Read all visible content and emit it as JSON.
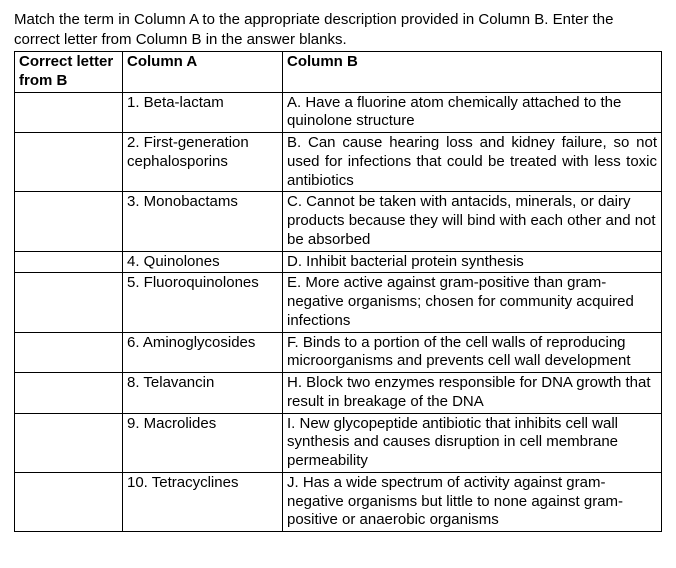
{
  "instructions": "Match the term in Column A to the appropriate description provided in Column B. Enter the correct letter from Column B in the answer blanks.",
  "headers": {
    "answer": "Correct letter from B",
    "colA": "Column A",
    "colB": "Column B"
  },
  "rows": [
    {
      "answer": "",
      "colA": "1. Beta-lactam",
      "colB": "A. Have a fluorine atom chemically attached to the quinolone structure",
      "justify": false
    },
    {
      "answer": "",
      "colA": "2. First-generation cephalosporins",
      "colB": "B. Can cause hearing loss and kidney failure, so not used for infections that could be treated with less toxic antibiotics",
      "justify": true
    },
    {
      "answer": "",
      "colA": "3. Monobactams",
      "colB": "C. Cannot be taken with antacids, minerals, or dairy products because they will bind with each other and not be absorbed",
      "justify": false
    },
    {
      "answer": "",
      "colA": "4. Quinolones",
      "colB": "D. Inhibit bacterial protein synthesis",
      "justify": false
    },
    {
      "answer": "",
      "colA": "5. Fluoroquinolones",
      "colB": "E. More active against gram-positive than gram-negative organisms; chosen for community acquired infections",
      "justify": false
    },
    {
      "answer": "",
      "colA": "6. Aminoglycosides",
      "colB": "F. Binds to a portion of the cell walls of reproducing microorganisms and prevents cell wall development",
      "justify": false
    },
    {
      "answer": "",
      "colA": "8. Telavancin",
      "colB": "H. Block two enzymes responsible for DNA growth that result in breakage of the DNA",
      "justify": false
    },
    {
      "answer": "",
      "colA": "9. Macrolides",
      "colB": "I. New glycopeptide antibiotic that inhibits cell wall synthesis and causes disruption in cell membrane permeability",
      "justify": false
    },
    {
      "answer": "",
      "colA": "10. Tetracyclines",
      "colB": "J. Has a wide spectrum of activity against gram-negative organisms but little to none against gram-positive or anaerobic organisms",
      "justify": false
    }
  ],
  "colors": {
    "text": "#000000",
    "background": "#ffffff",
    "border": "#000000"
  },
  "font": {
    "family": "Arial, sans-serif",
    "size": 15
  }
}
